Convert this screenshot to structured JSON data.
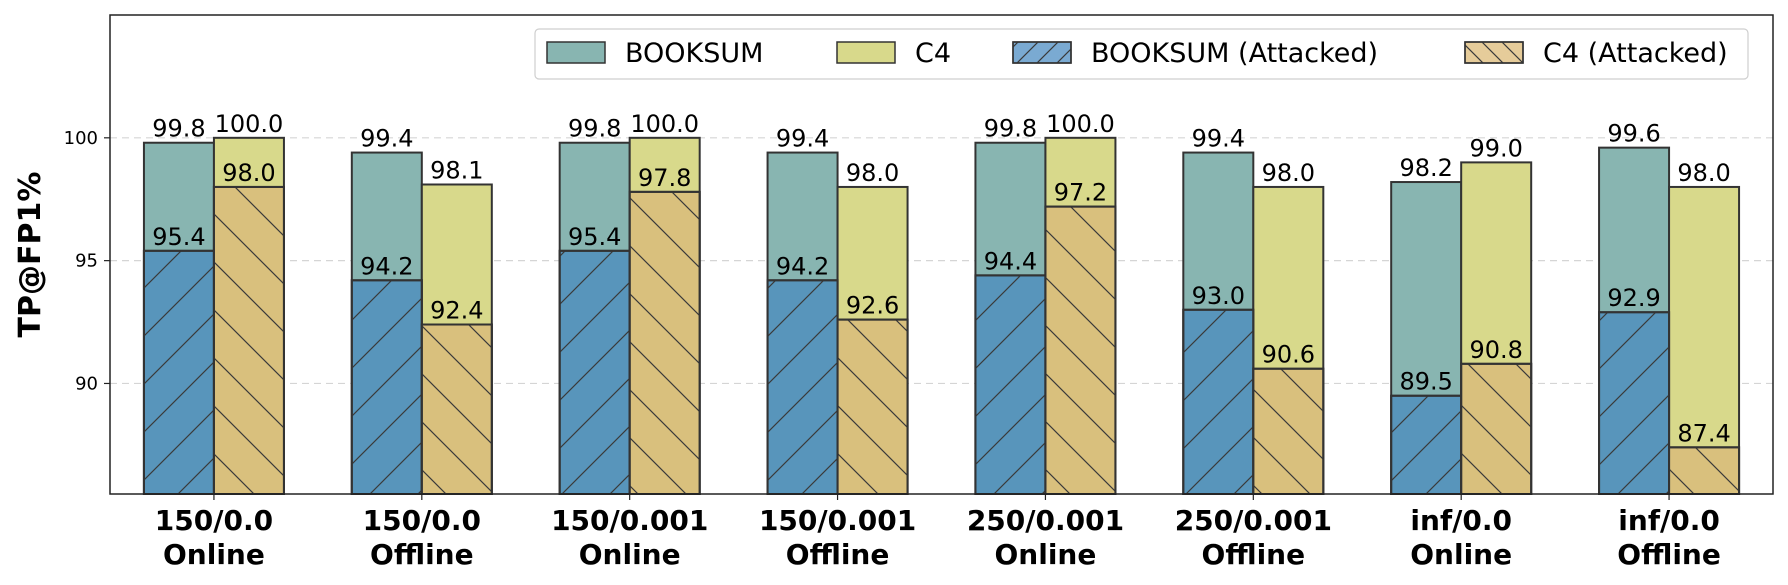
{
  "chart_data": {
    "type": "bar",
    "ylabel": "TP@FP1%",
    "xlabel": "",
    "title": "",
    "ylim": [
      85.5,
      105
    ],
    "yticks": [
      90,
      95,
      100
    ],
    "grid": "horizontal dashed",
    "legend_position": "top-right",
    "categories": [
      [
        "150/0.0",
        "Online"
      ],
      [
        "150/0.0",
        "Offline"
      ],
      [
        "150/0.001",
        "Online"
      ],
      [
        "150/0.001",
        "Offline"
      ],
      [
        "250/0.001",
        "Online"
      ],
      [
        "250/0.001",
        "Offline"
      ],
      [
        "inf/0.0",
        "Online"
      ],
      [
        "inf/0.0",
        "Offline"
      ]
    ],
    "series": [
      {
        "name": "BOOKSUM",
        "values": [
          99.8,
          99.4,
          99.8,
          99.4,
          99.8,
          99.4,
          98.2,
          99.6
        ],
        "color": "#88b5b1",
        "hatch": "none",
        "group": 0,
        "labels": [
          "99.8",
          "99.4",
          "99.8",
          "99.4",
          "99.8",
          "99.4",
          "98.2",
          "99.6"
        ]
      },
      {
        "name": "C4",
        "values": [
          100.0,
          98.1,
          100.0,
          98.0,
          100.0,
          98.0,
          99.0,
          98.0
        ],
        "color": "#d8d98b",
        "hatch": "none",
        "group": 1,
        "labels": [
          "100.0",
          "98.1",
          "100.0",
          "98.0",
          "100.0",
          "98.0",
          "99.0",
          "98.0"
        ]
      },
      {
        "name": "BOOKSUM (Attacked)",
        "values": [
          95.4,
          94.2,
          95.4,
          94.2,
          94.4,
          93.0,
          89.5,
          92.9
        ],
        "color": "#5895bb",
        "hatch": "forward",
        "group": 0,
        "labels": [
          "95.4",
          "94.2",
          "95.4",
          "94.2",
          "94.4",
          "93.0",
          "89.5",
          "92.9"
        ]
      },
      {
        "name": "C4 (Attacked)",
        "values": [
          98.0,
          92.4,
          97.8,
          92.6,
          97.2,
          90.6,
          90.8,
          87.4
        ],
        "color": "#d9c07d",
        "hatch": "back",
        "group": 1,
        "labels": [
          "98.0",
          "92.4",
          "97.8",
          "92.6",
          "97.2",
          "90.6",
          "90.8",
          "87.4"
        ]
      }
    ],
    "legend_colors": {
      "BOOKSUM": "#88b5b1",
      "C4": "#d8d98b",
      "BOOKSUM (Attacked)": "#7aaad2",
      "C4 (Attacked)": "#e6cc9a"
    }
  }
}
